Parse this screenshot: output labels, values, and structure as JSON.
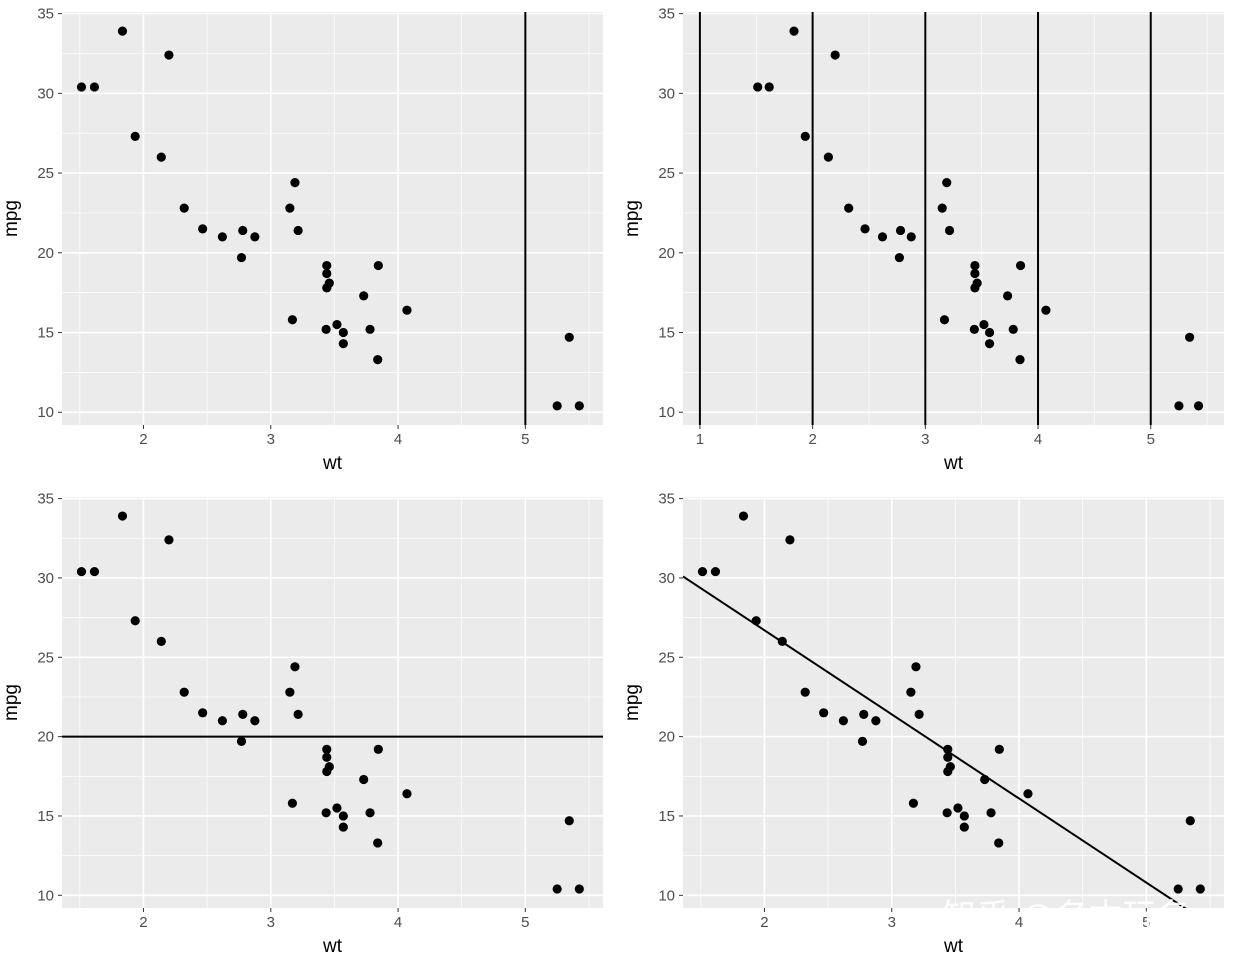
{
  "chart_data": [
    {
      "type": "scatter",
      "xlabel": "wt",
      "ylabel": "mpg",
      "xlim": [
        1.36,
        5.61
      ],
      "ylim": [
        9.2,
        35.1
      ],
      "xticks": [
        "2",
        "3",
        "4",
        "5"
      ],
      "yticks": [
        "10",
        "15",
        "20",
        "25",
        "30",
        "35"
      ],
      "grid": true,
      "reference_lines": [
        {
          "kind": "vline",
          "x": 5
        }
      ]
    },
    {
      "type": "scatter",
      "xlabel": "wt",
      "ylabel": "mpg",
      "xlim": [
        0.85,
        5.65
      ],
      "ylim": [
        9.2,
        35.1
      ],
      "xticks": [
        "1",
        "2",
        "3",
        "4",
        "5"
      ],
      "yticks": [
        "10",
        "15",
        "20",
        "25",
        "30",
        "35"
      ],
      "grid": true,
      "reference_lines": [
        {
          "kind": "vline",
          "x": 1
        },
        {
          "kind": "vline",
          "x": 2
        },
        {
          "kind": "vline",
          "x": 3
        },
        {
          "kind": "vline",
          "x": 4
        },
        {
          "kind": "vline",
          "x": 5
        }
      ]
    },
    {
      "type": "scatter",
      "xlabel": "wt",
      "ylabel": "mpg",
      "xlim": [
        1.36,
        5.61
      ],
      "ylim": [
        9.2,
        35.1
      ],
      "xticks": [
        "2",
        "3",
        "4",
        "5"
      ],
      "yticks": [
        "10",
        "15",
        "20",
        "25",
        "30",
        "35"
      ],
      "grid": true,
      "reference_lines": [
        {
          "kind": "hline",
          "y": 20
        }
      ]
    },
    {
      "type": "scatter",
      "xlabel": "wt",
      "ylabel": "mpg",
      "xlim": [
        1.36,
        5.61
      ],
      "ylim": [
        9.2,
        35.1
      ],
      "xticks": [
        "2",
        "3",
        "4",
        "5"
      ],
      "yticks": [
        "10",
        "15",
        "20",
        "25",
        "30",
        "35"
      ],
      "grid": true,
      "reference_lines": [
        {
          "kind": "abline",
          "intercept": 37.3,
          "slope": -5.3
        }
      ]
    }
  ],
  "points": {
    "x": [
      2.62,
      2.875,
      2.32,
      3.215,
      3.44,
      3.46,
      3.57,
      3.19,
      3.15,
      3.44,
      3.44,
      4.07,
      3.73,
      3.78,
      5.25,
      5.424,
      5.345,
      2.2,
      1.615,
      1.835,
      2.465,
      3.52,
      3.435,
      3.84,
      3.845,
      1.935,
      2.14,
      1.513,
      3.17,
      2.77,
      3.57,
      2.78
    ],
    "y": [
      21.0,
      21.0,
      22.8,
      21.4,
      18.7,
      18.1,
      14.3,
      24.4,
      22.8,
      19.2,
      17.8,
      16.4,
      17.3,
      15.2,
      10.4,
      10.4,
      14.7,
      32.4,
      30.4,
      33.9,
      21.5,
      15.5,
      15.2,
      13.3,
      19.2,
      27.3,
      26.0,
      30.4,
      15.8,
      19.7,
      15.0,
      21.4
    ]
  },
  "watermark": "知乎 @名本玩名"
}
